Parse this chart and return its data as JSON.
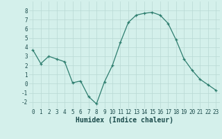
{
  "x": [
    0,
    1,
    2,
    3,
    4,
    5,
    6,
    7,
    8,
    9,
    10,
    11,
    12,
    13,
    14,
    15,
    16,
    17,
    18,
    19,
    20,
    21,
    22,
    23
  ],
  "y": [
    3.7,
    2.2,
    3.0,
    2.7,
    2.4,
    0.1,
    0.3,
    -1.4,
    -2.2,
    0.2,
    2.0,
    4.5,
    6.7,
    7.5,
    7.7,
    7.8,
    7.5,
    6.6,
    4.8,
    2.7,
    1.5,
    0.5,
    -0.1,
    -0.7
  ],
  "line_color": "#2d7d6e",
  "bg_color": "#d4f0eb",
  "grid_color": "#b8d8d4",
  "xlabel": "Humidex (Indice chaleur)",
  "tick_color": "#1a4a4a",
  "ylim": [
    -2.7,
    9.0
  ],
  "xlim": [
    -0.5,
    23.5
  ],
  "xticks": [
    0,
    1,
    2,
    3,
    4,
    5,
    6,
    7,
    8,
    9,
    10,
    11,
    12,
    13,
    14,
    15,
    16,
    17,
    18,
    19,
    20,
    21,
    22,
    23
  ],
  "yticks": [
    -2,
    -1,
    0,
    1,
    2,
    3,
    4,
    5,
    6,
    7,
    8
  ],
  "tick_fontsize": 5.5,
  "xlabel_fontsize": 7.0,
  "marker": "+",
  "markersize": 3.5,
  "linewidth": 0.9
}
